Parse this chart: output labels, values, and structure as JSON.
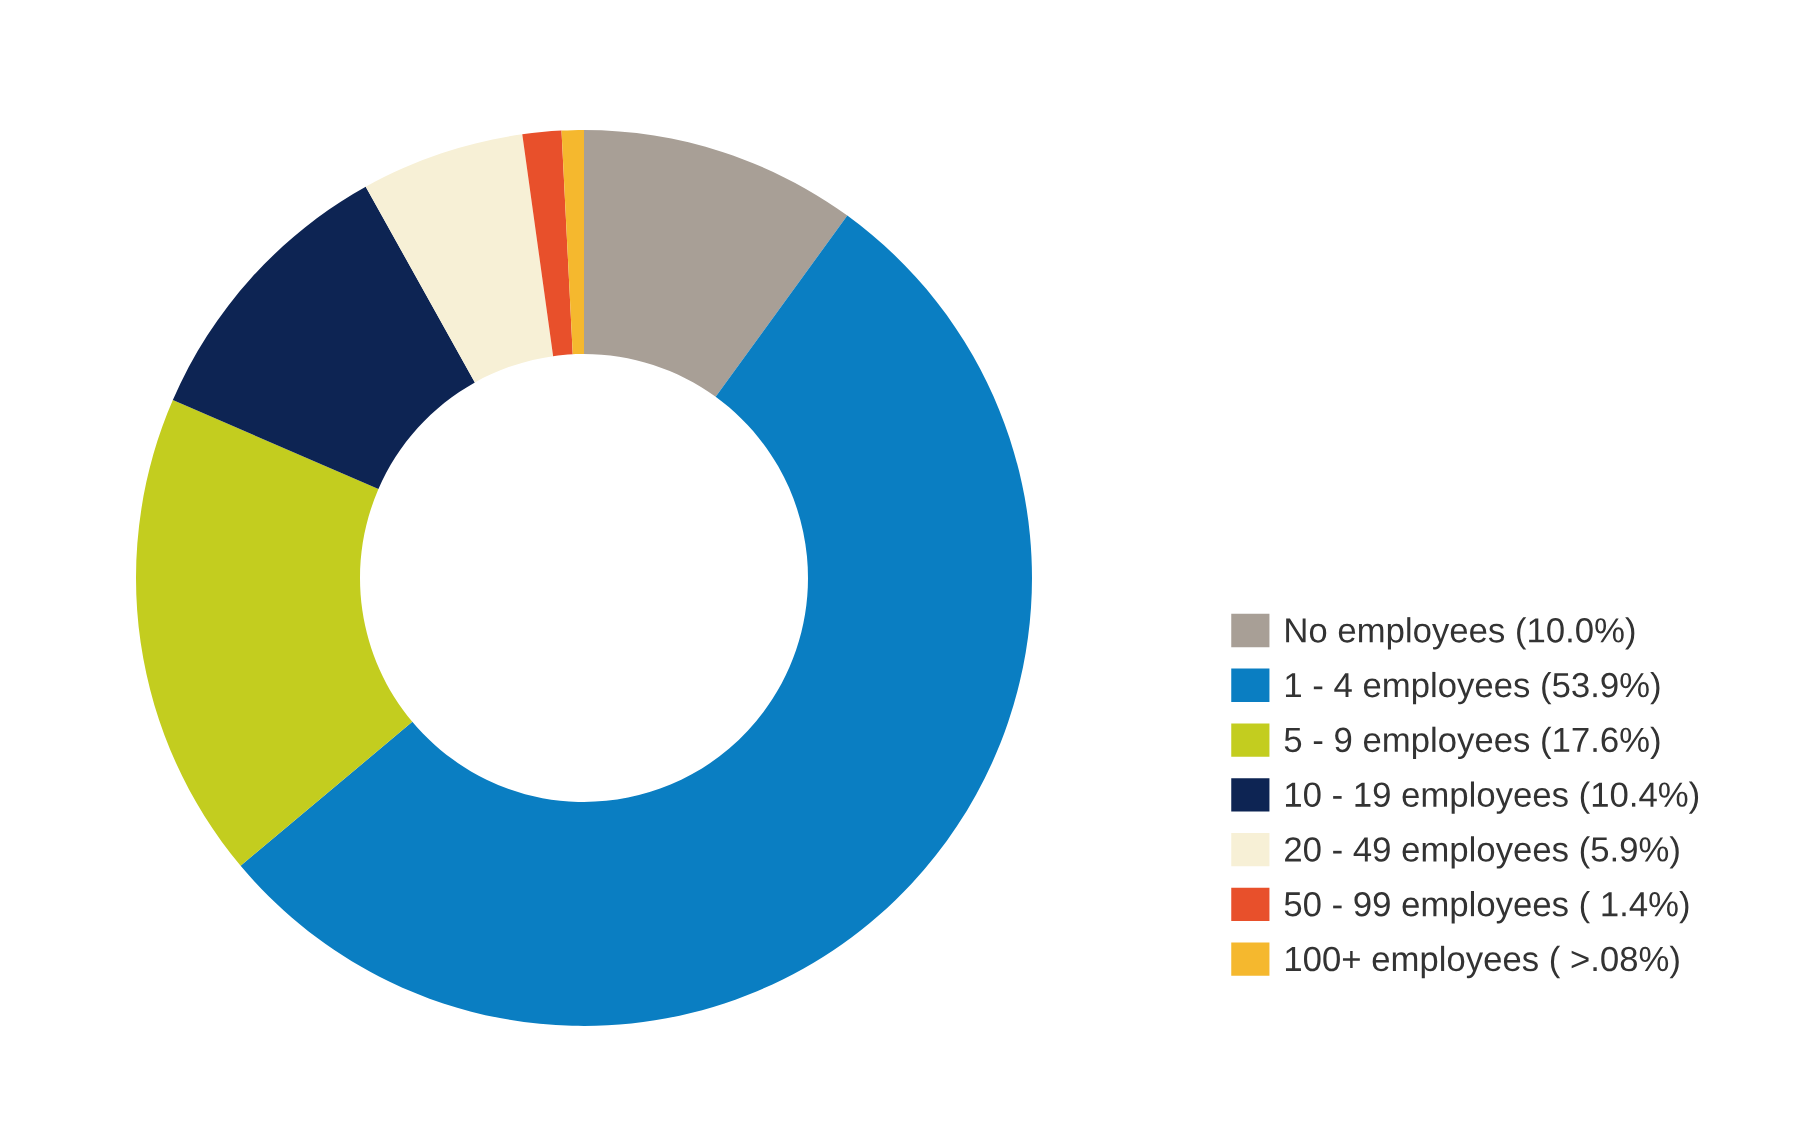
{
  "chart_data": {
    "type": "donut",
    "categories": [
      "No employees (10.0%)",
      "1 - 4 employees (53.9%)",
      "5 - 9 employees (17.6%)",
      "10 - 19 employees (10.4%)",
      "20 - 49 employees (5.9%)",
      "50 - 99 employees ( 1.4%)",
      "100+ employees ( >.08%)"
    ],
    "values": [
      10.0,
      53.9,
      17.6,
      10.4,
      5.9,
      1.4,
      0.8
    ],
    "colors": [
      "#a89f96",
      "#0a7ec2",
      "#c3cd1f",
      "#0d2453",
      "#f7f0d6",
      "#e8502b",
      "#f5b82e"
    ],
    "legend": "right"
  }
}
